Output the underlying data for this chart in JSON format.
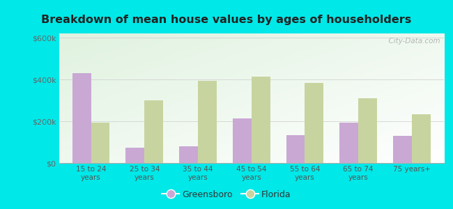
{
  "title": "Breakdown of mean house values by ages of householders",
  "categories": [
    "15 to 24\nyears",
    "25 to 34\nyears",
    "35 to 44\nyears",
    "45 to 54\nyears",
    "55 to 64\nyears",
    "65 to 74\nyears",
    "75 years+"
  ],
  "greensboro": [
    430000,
    75000,
    80000,
    215000,
    135000,
    195000,
    130000
  ],
  "florida": [
    195000,
    300000,
    395000,
    415000,
    385000,
    310000,
    235000
  ],
  "greensboro_color": "#c9a8d4",
  "florida_color": "#c8d4a0",
  "background_color": "#00e8e8",
  "title_color": "#222222",
  "ylabel_ticks": [
    "$0",
    "$200k",
    "$400k",
    "$600k"
  ],
  "ytick_values": [
    0,
    200000,
    400000,
    600000
  ],
  "ylim": [
    0,
    620000
  ],
  "legend_labels": [
    "Greensboro",
    "Florida"
  ],
  "bar_width": 0.35,
  "watermark": "  City-Data.com"
}
